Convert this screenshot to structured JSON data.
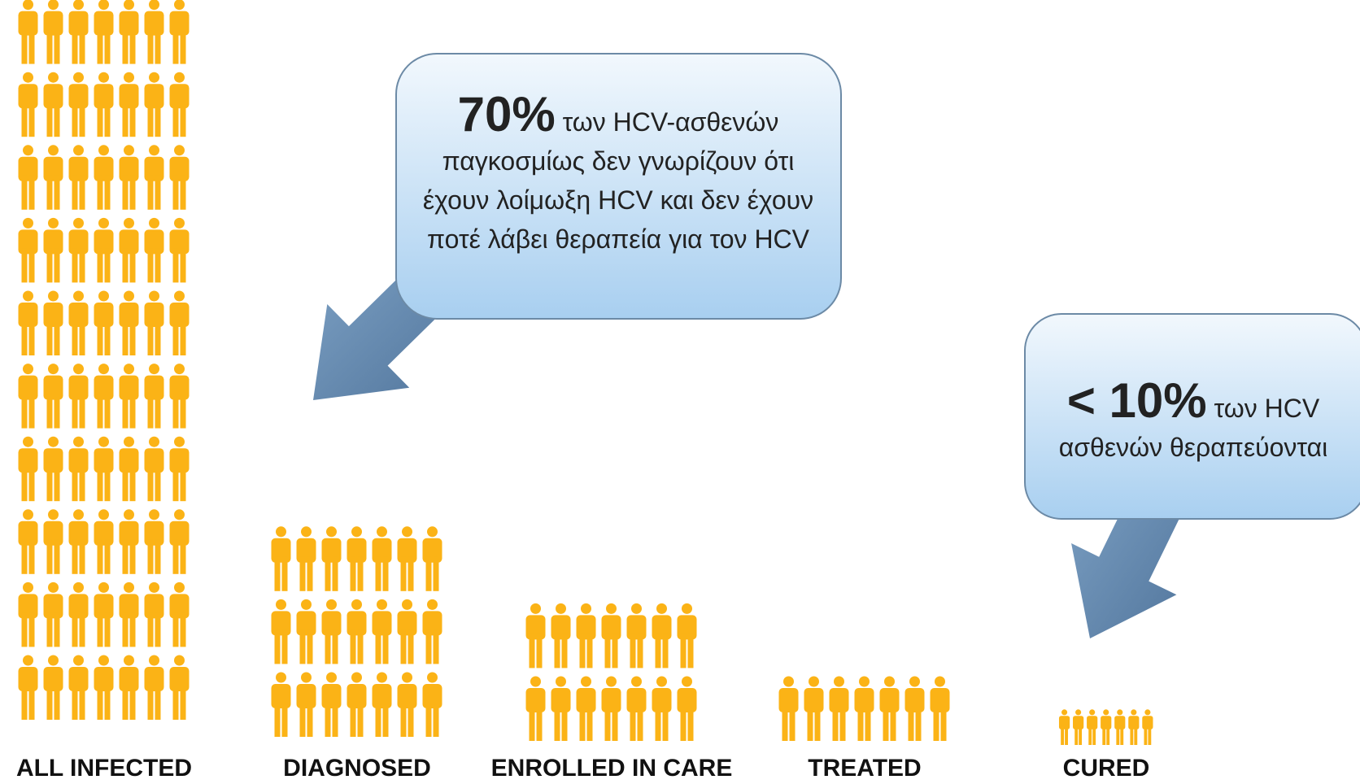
{
  "chart_data": {
    "type": "pictogram",
    "categories": [
      "ALL INFECTED",
      "DIAGNOSED",
      "ENROLLED IN CARE",
      "TREATED",
      "CURED"
    ],
    "values": [
      10,
      3,
      2,
      1,
      1
    ],
    "color": "#fbb316",
    "annotations": [
      {
        "emphasis": "70%",
        "text": "των HCV-ασθενών παγκοσμίως δεν γνωρίζουν ότι έχουν λοίμωξη HCV και δεν έχουν ποτέ λάβει θεραπεία για τον HCV"
      },
      {
        "emphasis": "< 10%",
        "text": "των HCV ασθενών θεραπεύονται"
      }
    ]
  }
}
